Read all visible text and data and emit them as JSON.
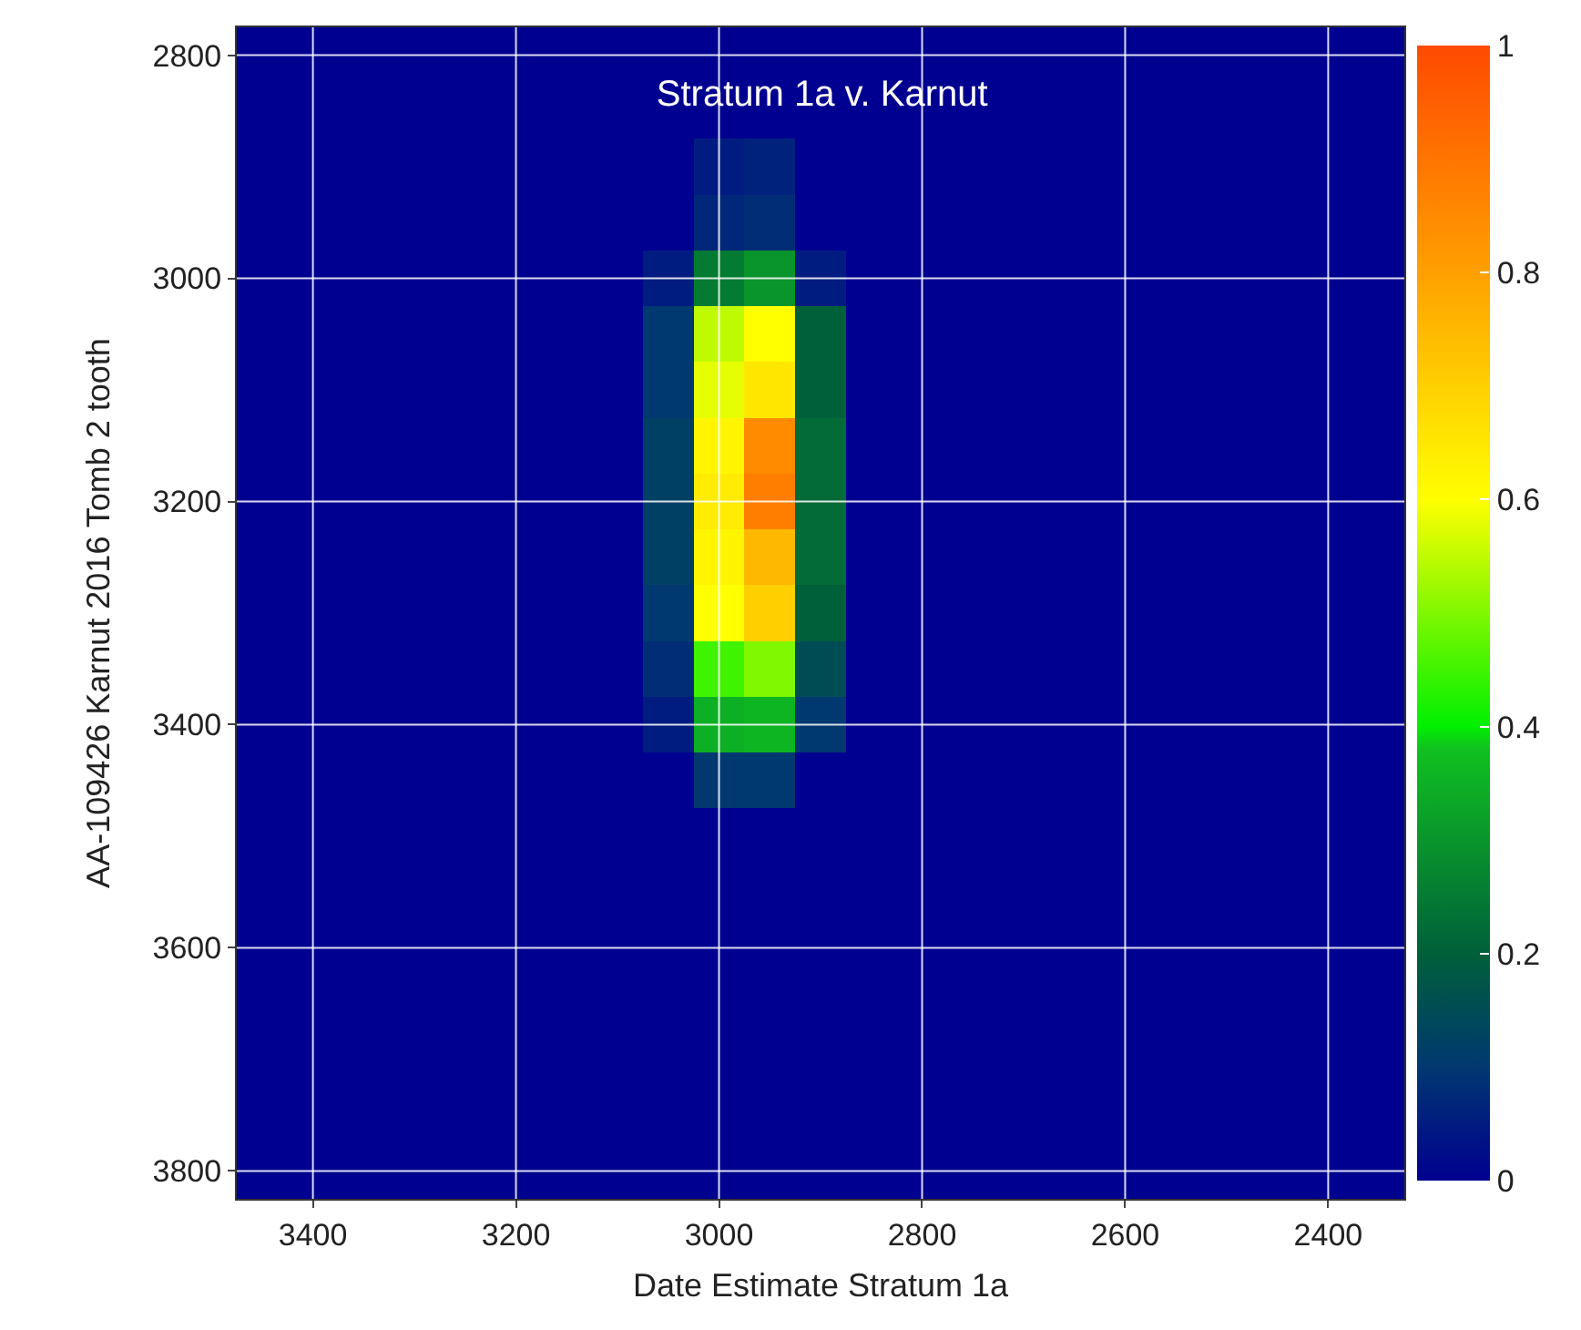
{
  "chart_data": {
    "type": "heatmap",
    "title": "Stratum 1a v. Karnut",
    "xlabel": "Date Estimate Stratum 1a",
    "ylabel": "AA-109426 Karnut 2016 Tomb 2 tooth",
    "categories": [
      null,
      "3400",
      null,
      null,
      null,
      "3200",
      null,
      null,
      null,
      "3000",
      null,
      null,
      null,
      "2800",
      null,
      null,
      null,
      "2600",
      null,
      null,
      null,
      "2400",
      null
    ],
    "y_categories": [
      "2800",
      null,
      null,
      null,
      "3000",
      null,
      null,
      null,
      "3200",
      null,
      null,
      null,
      "3400",
      null,
      null,
      null,
      "3600",
      null,
      null,
      null,
      "3800"
    ],
    "cells": [
      [
        0,
        0,
        0,
        0,
        0,
        0,
        0,
        0,
        0,
        0,
        0,
        0,
        0,
        0,
        0,
        0,
        0,
        0,
        0,
        0,
        0,
        0,
        0
      ],
      [
        0,
        0,
        0,
        0,
        0,
        0,
        0,
        0,
        0,
        0,
        0,
        0,
        0,
        0,
        0,
        0,
        0,
        0,
        0,
        0,
        0,
        0,
        0
      ],
      [
        0,
        0,
        0,
        0,
        0,
        0,
        0,
        0,
        0,
        0.05,
        0.06,
        0,
        0,
        0,
        0,
        0,
        0,
        0,
        0,
        0,
        0,
        0,
        0
      ],
      [
        0,
        0,
        0,
        0,
        0,
        0,
        0,
        0,
        0,
        0.07,
        0.08,
        0,
        0,
        0,
        0,
        0,
        0,
        0,
        0,
        0,
        0,
        0,
        0
      ],
      [
        0,
        0,
        0,
        0,
        0,
        0,
        0,
        0,
        0.05,
        0.25,
        0.3,
        0.05,
        0,
        0,
        0,
        0,
        0,
        0,
        0,
        0,
        0,
        0,
        0
      ],
      [
        0,
        0,
        0,
        0,
        0,
        0,
        0,
        0,
        0.1,
        0.55,
        0.6,
        0.2,
        0,
        0,
        0,
        0,
        0,
        0,
        0,
        0,
        0,
        0,
        0
      ],
      [
        0,
        0,
        0,
        0,
        0,
        0,
        0,
        0,
        0.1,
        0.58,
        0.65,
        0.2,
        0,
        0,
        0,
        0,
        0,
        0,
        0,
        0,
        0,
        0,
        0
      ],
      [
        0,
        0,
        0,
        0,
        0,
        0,
        0,
        0,
        0.12,
        0.62,
        0.85,
        0.22,
        0,
        0,
        0,
        0,
        0,
        0,
        0,
        0,
        0,
        0,
        0
      ],
      [
        0,
        0,
        0,
        0,
        0,
        0,
        0,
        0,
        0.12,
        0.64,
        0.88,
        0.22,
        0,
        0,
        0,
        0,
        0,
        0,
        0,
        0,
        0,
        0,
        0
      ],
      [
        0,
        0,
        0,
        0,
        0,
        0,
        0,
        0,
        0.12,
        0.62,
        0.75,
        0.22,
        0,
        0,
        0,
        0,
        0,
        0,
        0,
        0,
        0,
        0,
        0
      ],
      [
        0,
        0,
        0,
        0,
        0,
        0,
        0,
        0,
        0.1,
        0.6,
        0.7,
        0.2,
        0,
        0,
        0,
        0,
        0,
        0,
        0,
        0,
        0,
        0,
        0
      ],
      [
        0,
        0,
        0,
        0,
        0,
        0,
        0,
        0,
        0.08,
        0.45,
        0.5,
        0.15,
        0,
        0,
        0,
        0,
        0,
        0,
        0,
        0,
        0,
        0,
        0
      ],
      [
        0,
        0,
        0,
        0,
        0,
        0,
        0,
        0,
        0.05,
        0.35,
        0.36,
        0.1,
        0,
        0,
        0,
        0,
        0,
        0,
        0,
        0,
        0,
        0,
        0
      ],
      [
        0,
        0,
        0,
        0,
        0,
        0,
        0,
        0,
        0,
        0.1,
        0.1,
        0,
        0,
        0,
        0,
        0,
        0,
        0,
        0,
        0,
        0,
        0,
        0
      ],
      [
        0,
        0,
        0,
        0,
        0,
        0,
        0,
        0,
        0,
        0,
        0,
        0,
        0,
        0,
        0,
        0,
        0,
        0,
        0,
        0,
        0,
        0,
        0
      ],
      [
        0,
        0,
        0,
        0,
        0,
        0,
        0,
        0,
        0,
        0,
        0,
        0,
        0,
        0,
        0,
        0,
        0,
        0,
        0,
        0,
        0,
        0,
        0
      ],
      [
        0,
        0,
        0,
        0,
        0,
        0,
        0,
        0,
        0,
        0,
        0,
        0,
        0,
        0,
        0,
        0,
        0,
        0,
        0,
        0,
        0,
        0,
        0
      ],
      [
        0,
        0,
        0,
        0,
        0,
        0,
        0,
        0,
        0,
        0,
        0,
        0,
        0,
        0,
        0,
        0,
        0,
        0,
        0,
        0,
        0,
        0,
        0
      ],
      [
        0,
        0,
        0,
        0,
        0,
        0,
        0,
        0,
        0,
        0,
        0,
        0,
        0,
        0,
        0,
        0,
        0,
        0,
        0,
        0,
        0,
        0,
        0
      ],
      [
        0,
        0,
        0,
        0,
        0,
        0,
        0,
        0,
        0,
        0,
        0,
        0,
        0,
        0,
        0,
        0,
        0,
        0,
        0,
        0,
        0,
        0,
        0
      ],
      [
        0,
        0,
        0,
        0,
        0,
        0,
        0,
        0,
        0,
        0,
        0,
        0,
        0,
        0,
        0,
        0,
        0,
        0,
        0,
        0,
        0,
        0,
        0
      ]
    ],
    "clim": [
      0,
      1
    ],
    "cticks": [
      0,
      0.2,
      0.4,
      0.6,
      0.8,
      1
    ],
    "grid": true
  }
}
